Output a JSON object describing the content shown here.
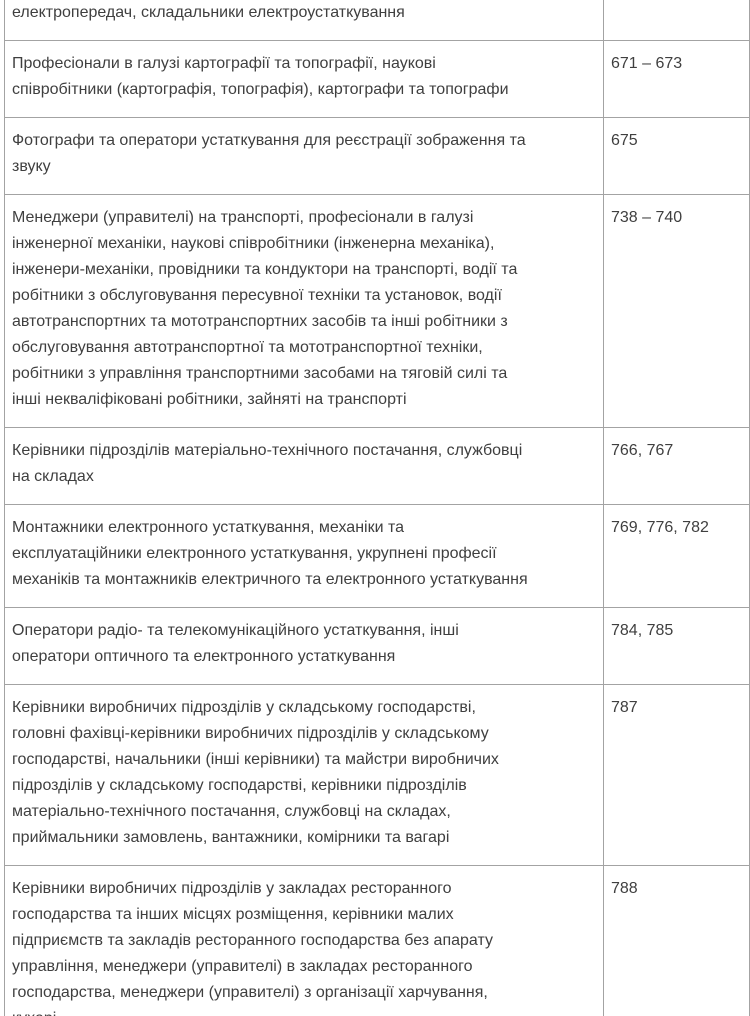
{
  "page": {
    "background_color": "#ffffff",
    "text_color": "#3f3f3f",
    "border_color": "#a3a3a3"
  },
  "table": {
    "description": "Two-column reference table mapping occupation group names (Ukrainian) to numeric codes; first and last rows are cut off by the viewport edges",
    "rows": [
      {
        "occupation": "електропередач, складальники електроустаткування",
        "codes": ""
      },
      {
        "occupation": "Професіонали в галузі картографії та топографії, наукові\nспівробітники (картографія, топографія), картографи та топографи",
        "codes": "671 – 673"
      },
      {
        "occupation": "Фотографи та оператори устаткування для реєстрації зображення та\nзвуку",
        "codes": "675"
      },
      {
        "occupation": "Менеджери (управителі) на транспорті, професіонали в галузі\nінженерної механіки, наукові співробітники (інженерна механіка),\nінженери-механіки, провідники та кондуктори на транспорті, водії та\nробітники з обслуговування пересувної техніки та установок, водії\nавтотранспортних та мототранспортних засобів та інші робітники з\nобслуговування автотранспортної та мототранспортної техніки,\nробітники з управління транспортними засобами на тяговій силі та\nінші некваліфіковані робітники, зайняті на транспорті",
        "codes": "738 – 740"
      },
      {
        "occupation": "Керівники підрозділів матеріально-технічного постачання, службовці\nна складах",
        "codes": "766, 767"
      },
      {
        "occupation": "Монтажники електронного устаткування, механіки та\nексплуатаційники електронного устаткування, укрупнені професії\nмеханіків та монтажників електричного та електронного устаткування",
        "codes": "769, 776, 782"
      },
      {
        "occupation": "Оператори радіо- та телекомунікаційного устаткування, інші\nоператори оптичного та електронного устаткування",
        "codes": "784, 785"
      },
      {
        "occupation": "Керівники виробничих підрозділів у складському господарстві,\nголовні фахівці-керівники виробничих підрозділів у складському\nгосподарстві, начальники (інші керівники) та майстри виробничих\nпідрозділів у складському господарстві, керівники підрозділів\nматеріально-технічного постачання, службовці на складах,\nприймальники замовлень, вантажники, комірники та вагарі",
        "codes": "787"
      },
      {
        "occupation": "Керівники виробничих підрозділів у закладах ресторанного\nгосподарства та інших місцях розміщення, керівники малих\nпідприємств та закладів ресторанного господарства без апарату\nуправління, менеджери (управителі) в закладах ресторанного\nгосподарства, менеджери (управителі) з організації харчування,\nкухарі",
        "codes": "788"
      }
    ]
  }
}
